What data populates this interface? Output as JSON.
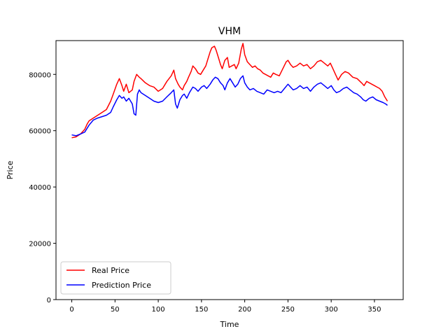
{
  "chart_data": {
    "type": "line",
    "title": "VHM",
    "xlabel": "Time",
    "ylabel": "Price",
    "xlim": [
      -18.25,
      383.25
    ],
    "ylim": [
      0,
      92000
    ],
    "xticks": [
      0,
      50,
      100,
      150,
      200,
      250,
      300,
      350
    ],
    "xtick_labels": [
      "0",
      "50",
      "100",
      "150",
      "200",
      "250",
      "300",
      "350"
    ],
    "yticks": [
      0,
      20000,
      40000,
      60000,
      80000
    ],
    "ytick_labels": [
      "0",
      "20000",
      "40000",
      "60000",
      "80000"
    ],
    "grid": false,
    "legend": "lower-left",
    "series": [
      {
        "name": "Real Price",
        "color": "#ff0000",
        "points": [
          [
            0,
            57500
          ],
          [
            5,
            57800
          ],
          [
            10,
            58800
          ],
          [
            15,
            60500
          ],
          [
            18,
            62500
          ],
          [
            20,
            63500
          ],
          [
            25,
            64500
          ],
          [
            30,
            65500
          ],
          [
            35,
            66500
          ],
          [
            40,
            67500
          ],
          [
            45,
            70500
          ],
          [
            48,
            73000
          ],
          [
            52,
            76500
          ],
          [
            55,
            78500
          ],
          [
            58,
            76000
          ],
          [
            60,
            74000
          ],
          [
            63,
            76500
          ],
          [
            66,
            73500
          ],
          [
            70,
            74500
          ],
          [
            72,
            77500
          ],
          [
            75,
            80000
          ],
          [
            78,
            79000
          ],
          [
            80,
            78500
          ],
          [
            85,
            77000
          ],
          [
            90,
            76000
          ],
          [
            95,
            75500
          ],
          [
            100,
            74000
          ],
          [
            105,
            75000
          ],
          [
            110,
            77500
          ],
          [
            115,
            79500
          ],
          [
            118,
            81500
          ],
          [
            120,
            78500
          ],
          [
            123,
            76500
          ],
          [
            125,
            75500
          ],
          [
            128,
            74500
          ],
          [
            130,
            76000
          ],
          [
            133,
            77500
          ],
          [
            135,
            79000
          ],
          [
            138,
            81000
          ],
          [
            140,
            83000
          ],
          [
            143,
            82000
          ],
          [
            146,
            80500
          ],
          [
            149,
            80000
          ],
          [
            152,
            81500
          ],
          [
            155,
            83000
          ],
          [
            158,
            86000
          ],
          [
            160,
            88000
          ],
          [
            162,
            89500
          ],
          [
            165,
            90000
          ],
          [
            167,
            88500
          ],
          [
            170,
            85500
          ],
          [
            172,
            83500
          ],
          [
            174,
            82000
          ],
          [
            177,
            85000
          ],
          [
            180,
            86000
          ],
          [
            182,
            82500
          ],
          [
            185,
            83000
          ],
          [
            188,
            83500
          ],
          [
            190,
            82000
          ],
          [
            193,
            84000
          ],
          [
            196,
            89000
          ],
          [
            198,
            91000
          ],
          [
            200,
            87000
          ],
          [
            203,
            84500
          ],
          [
            206,
            83500
          ],
          [
            209,
            82500
          ],
          [
            212,
            83000
          ],
          [
            215,
            82000
          ],
          [
            218,
            81500
          ],
          [
            221,
            80500
          ],
          [
            224,
            80000
          ],
          [
            227,
            79500
          ],
          [
            230,
            79000
          ],
          [
            233,
            80500
          ],
          [
            236,
            80000
          ],
          [
            240,
            79500
          ],
          [
            244,
            82000
          ],
          [
            248,
            84500
          ],
          [
            250,
            85000
          ],
          [
            253,
            83500
          ],
          [
            256,
            82500
          ],
          [
            260,
            83000
          ],
          [
            264,
            84000
          ],
          [
            268,
            83000
          ],
          [
            272,
            83500
          ],
          [
            276,
            82000
          ],
          [
            280,
            83000
          ],
          [
            284,
            84500
          ],
          [
            288,
            85000
          ],
          [
            292,
            84000
          ],
          [
            296,
            83000
          ],
          [
            299,
            84000
          ],
          [
            302,
            82000
          ],
          [
            305,
            80000
          ],
          [
            308,
            78000
          ],
          [
            312,
            80000
          ],
          [
            316,
            81000
          ],
          [
            320,
            80500
          ],
          [
            325,
            79000
          ],
          [
            330,
            78500
          ],
          [
            335,
            77000
          ],
          [
            338,
            76000
          ],
          [
            341,
            77500
          ],
          [
            344,
            77000
          ],
          [
            347,
            76500
          ],
          [
            350,
            76000
          ],
          [
            353,
            75500
          ],
          [
            356,
            75000
          ],
          [
            359,
            74000
          ],
          [
            362,
            72000
          ],
          [
            365,
            70500
          ]
        ]
      },
      {
        "name": "Prediction Price",
        "color": "#0000ff",
        "points": [
          [
            0,
            58500
          ],
          [
            5,
            58200
          ],
          [
            10,
            58800
          ],
          [
            15,
            59500
          ],
          [
            18,
            61000
          ],
          [
            20,
            62000
          ],
          [
            25,
            63800
          ],
          [
            30,
            64500
          ],
          [
            35,
            65000
          ],
          [
            40,
            65500
          ],
          [
            45,
            66500
          ],
          [
            48,
            68500
          ],
          [
            52,
            71000
          ],
          [
            55,
            72500
          ],
          [
            58,
            71500
          ],
          [
            60,
            72000
          ],
          [
            63,
            70500
          ],
          [
            66,
            71500
          ],
          [
            70,
            69500
          ],
          [
            72,
            66000
          ],
          [
            74,
            65500
          ],
          [
            76,
            73000
          ],
          [
            78,
            74500
          ],
          [
            80,
            73500
          ],
          [
            85,
            72500
          ],
          [
            90,
            71500
          ],
          [
            95,
            70500
          ],
          [
            100,
            70000
          ],
          [
            105,
            70500
          ],
          [
            110,
            72000
          ],
          [
            115,
            73500
          ],
          [
            118,
            74500
          ],
          [
            120,
            69500
          ],
          [
            122,
            68000
          ],
          [
            125,
            71000
          ],
          [
            128,
            72500
          ],
          [
            130,
            73000
          ],
          [
            133,
            71500
          ],
          [
            136,
            73500
          ],
          [
            140,
            75500
          ],
          [
            143,
            75000
          ],
          [
            146,
            74000
          ],
          [
            150,
            75500
          ],
          [
            153,
            76000
          ],
          [
            156,
            75000
          ],
          [
            160,
            76500
          ],
          [
            163,
            78000
          ],
          [
            166,
            79000
          ],
          [
            169,
            78500
          ],
          [
            172,
            77000
          ],
          [
            175,
            76000
          ],
          [
            177,
            74500
          ],
          [
            180,
            77000
          ],
          [
            183,
            78500
          ],
          [
            186,
            77000
          ],
          [
            189,
            75500
          ],
          [
            192,
            76500
          ],
          [
            195,
            78500
          ],
          [
            198,
            79500
          ],
          [
            200,
            77000
          ],
          [
            203,
            75500
          ],
          [
            206,
            74500
          ],
          [
            210,
            75000
          ],
          [
            214,
            74000
          ],
          [
            218,
            73500
          ],
          [
            222,
            73000
          ],
          [
            226,
            74500
          ],
          [
            230,
            74000
          ],
          [
            234,
            73500
          ],
          [
            238,
            74000
          ],
          [
            242,
            73500
          ],
          [
            246,
            75000
          ],
          [
            250,
            76500
          ],
          [
            253,
            75500
          ],
          [
            256,
            74500
          ],
          [
            260,
            75000
          ],
          [
            264,
            76000
          ],
          [
            268,
            75000
          ],
          [
            272,
            75500
          ],
          [
            276,
            74000
          ],
          [
            280,
            75500
          ],
          [
            284,
            76500
          ],
          [
            288,
            77000
          ],
          [
            292,
            76000
          ],
          [
            296,
            75000
          ],
          [
            300,
            76000
          ],
          [
            303,
            74500
          ],
          [
            306,
            73500
          ],
          [
            310,
            74000
          ],
          [
            314,
            75000
          ],
          [
            318,
            75500
          ],
          [
            322,
            74500
          ],
          [
            326,
            73500
          ],
          [
            330,
            73000
          ],
          [
            334,
            72000
          ],
          [
            337,
            71000
          ],
          [
            340,
            70500
          ],
          [
            344,
            71500
          ],
          [
            348,
            72000
          ],
          [
            352,
            71000
          ],
          [
            356,
            70500
          ],
          [
            360,
            70000
          ],
          [
            363,
            69500
          ],
          [
            365,
            69000
          ]
        ]
      }
    ]
  }
}
